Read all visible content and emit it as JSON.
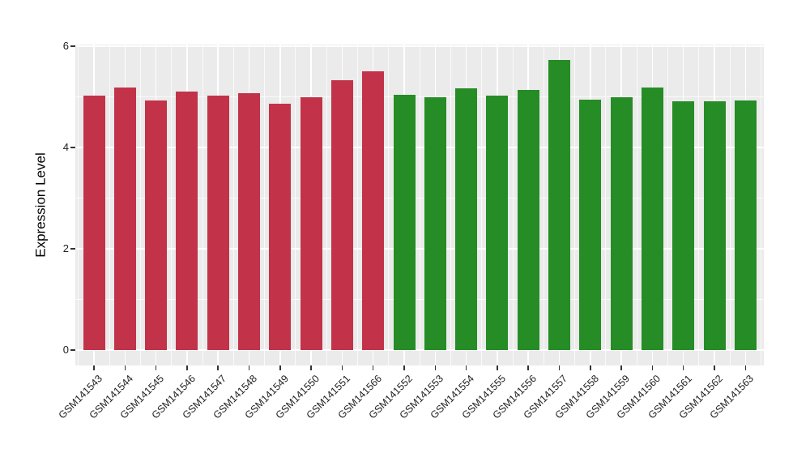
{
  "chart_data": {
    "type": "bar",
    "title": "",
    "xlabel": "",
    "ylabel": "Expression Level",
    "ylim": [
      0,
      6
    ],
    "yticks": [
      0,
      2,
      4,
      6
    ],
    "ytick_labels": [
      "0",
      "2",
      "4",
      "6"
    ],
    "minor_yticks": [
      1,
      3,
      5
    ],
    "grid": "white major+minor gridlines on gray panel, vertical major lines at each category center",
    "legend": "none",
    "categories": [
      "GSM141543",
      "GSM141544",
      "GSM141545",
      "GSM141546",
      "GSM141547",
      "GSM141548",
      "GSM141549",
      "GSM141550",
      "GSM141551",
      "GSM141566",
      "GSM141552",
      "GSM141553",
      "GSM141554",
      "GSM141555",
      "GSM141556",
      "GSM141557",
      "GSM141558",
      "GSM141559",
      "GSM141560",
      "GSM141561",
      "GSM141562",
      "GSM141563"
    ],
    "values": [
      5.02,
      5.18,
      4.93,
      5.1,
      5.02,
      5.08,
      4.87,
      5.0,
      5.33,
      5.5,
      5.04,
      4.99,
      5.17,
      5.02,
      5.13,
      5.73,
      4.94,
      4.99,
      5.18,
      4.91,
      4.91,
      4.93
    ],
    "bar_group": [
      "group-red",
      "group-red",
      "group-red",
      "group-red",
      "group-red",
      "group-red",
      "group-red",
      "group-red",
      "group-red",
      "group-red",
      "group-green",
      "group-green",
      "group-green",
      "group-green",
      "group-green",
      "group-green",
      "group-green",
      "group-green",
      "group-green",
      "group-green",
      "group-green",
      "group-green"
    ],
    "group_colors": {
      "group-red": "#C23349",
      "group-green": "#268C26"
    }
  },
  "style": {
    "panel_background": "#EBEBEB",
    "gridline_color": "#FFFFFF",
    "tick_color": "#333333",
    "tick_label_color": "#1F1F1F",
    "axis_title_color": "#000000",
    "figure_background": "#FFFFFF"
  }
}
